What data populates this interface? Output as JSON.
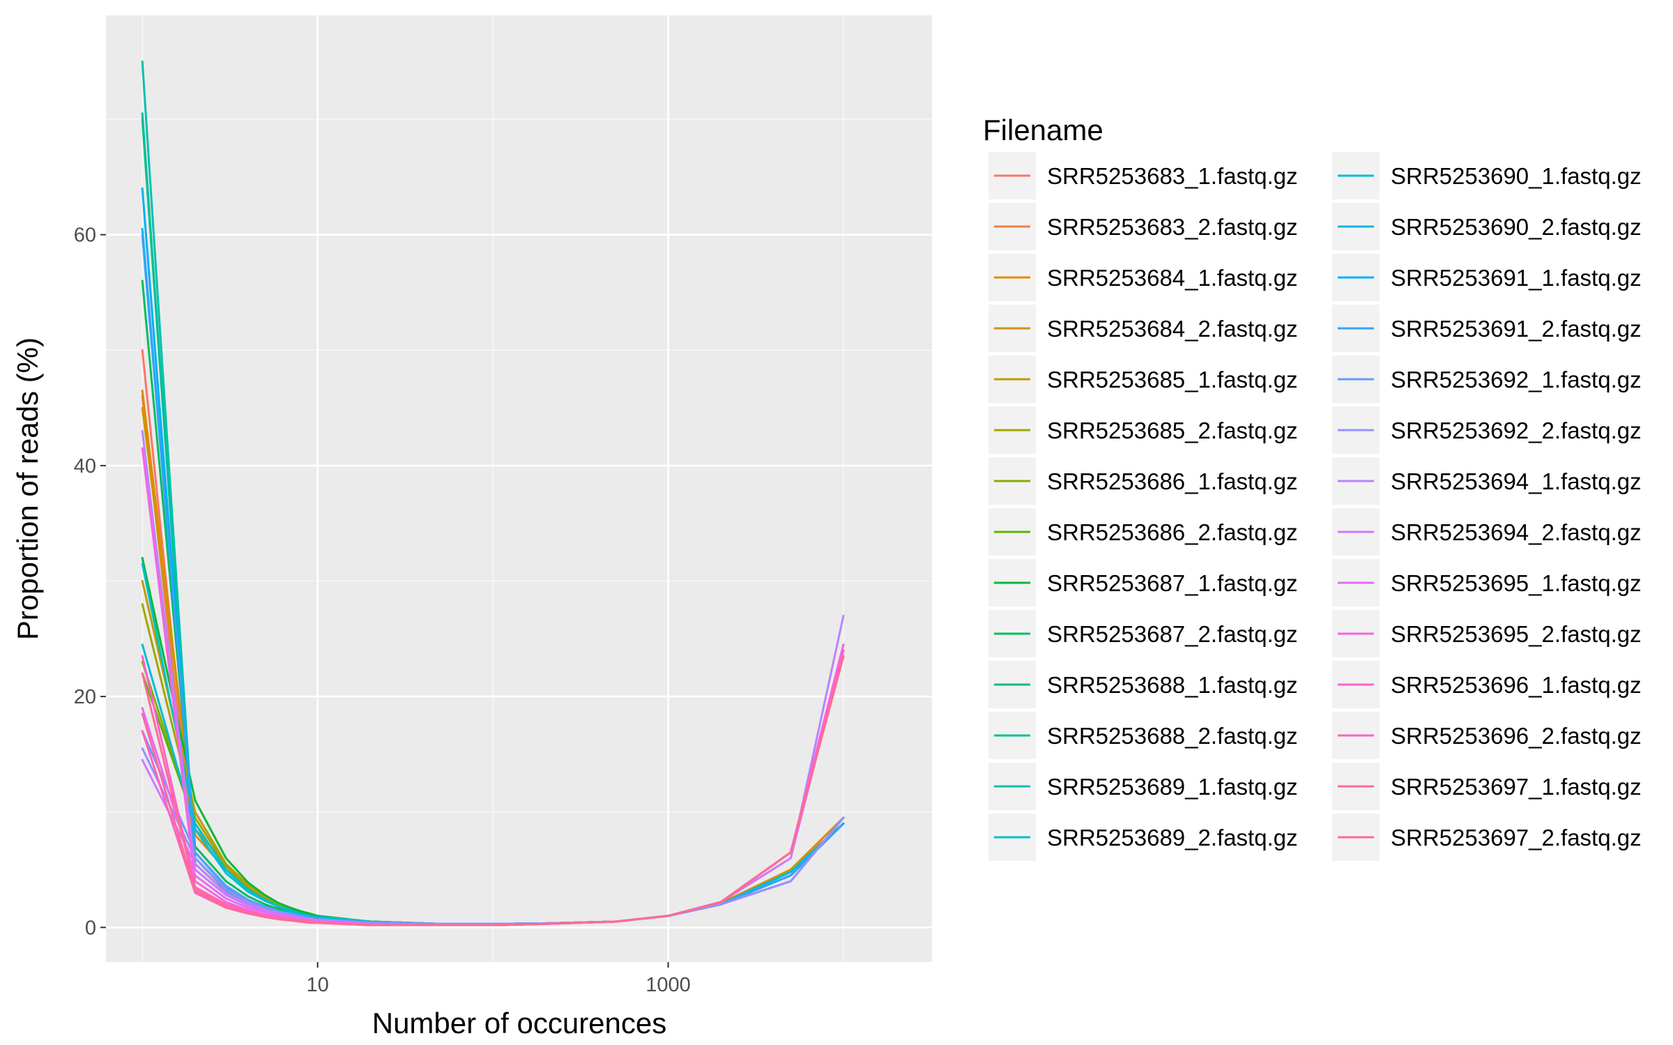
{
  "chart_data": {
    "type": "line",
    "title": "",
    "xlabel": "Number of occurences",
    "ylabel": "Proportion of reads (%)",
    "x_scale": "log10",
    "xlim": [
      0.62,
      32000
    ],
    "ylim": [
      -3,
      79
    ],
    "x_ticks": [
      {
        "value": 10,
        "label": "10"
      },
      {
        "value": 1000,
        "label": "1000"
      }
    ],
    "y_ticks": [
      {
        "value": 0,
        "label": "0"
      },
      {
        "value": 20,
        "label": "20"
      },
      {
        "value": 40,
        "label": "40"
      },
      {
        "value": 60,
        "label": "60"
      }
    ],
    "background": "#ebebeb",
    "grid": true,
    "legend": {
      "title": "Filename",
      "position": "right",
      "columns": 2
    },
    "x": [
      1,
      2,
      3,
      4,
      5,
      6,
      7,
      8,
      9,
      10,
      20,
      50,
      100,
      200,
      500,
      1000,
      2000,
      5000,
      10000
    ],
    "series": [
      {
        "name": "SRR5253683_1.fastq.gz",
        "color": "#F8766D",
        "values": [
          50,
          5.5,
          3.0,
          2.0,
          1.5,
          1.2,
          1.0,
          0.9,
          0.8,
          0.7,
          0.4,
          0.3,
          0.3,
          0.35,
          0.5,
          1.0,
          2.0,
          5.0,
          9.0
        ]
      },
      {
        "name": "SRR5253683_2.fastq.gz",
        "color": "#EE8043",
        "values": [
          46,
          5.0,
          2.8,
          1.9,
          1.5,
          1.2,
          1.0,
          0.9,
          0.8,
          0.7,
          0.4,
          0.3,
          0.3,
          0.35,
          0.5,
          1.0,
          2.0,
          5.0,
          9.5
        ]
      },
      {
        "name": "SRR5253684_1.fastq.gz",
        "color": "#E08B00",
        "values": [
          46.5,
          8.0,
          5.0,
          3.5,
          2.6,
          2.0,
          1.6,
          1.3,
          1.1,
          0.9,
          0.5,
          0.3,
          0.3,
          0.35,
          0.5,
          1.0,
          2.1,
          5.0,
          9.5
        ]
      },
      {
        "name": "SRR5253684_2.fastq.gz",
        "color": "#CF9400",
        "values": [
          45,
          8.5,
          5.5,
          3.7,
          2.7,
          2.1,
          1.7,
          1.4,
          1.2,
          1.0,
          0.5,
          0.3,
          0.3,
          0.35,
          0.5,
          1.0,
          2.1,
          5.0,
          9.5
        ]
      },
      {
        "name": "SRR5253685_1.fastq.gz",
        "color": "#BB9D00",
        "values": [
          30,
          10.0,
          5.5,
          3.6,
          2.6,
          2.0,
          1.6,
          1.3,
          1.1,
          0.9,
          0.5,
          0.3,
          0.3,
          0.35,
          0.5,
          1.0,
          2.0,
          4.8,
          9.0
        ]
      },
      {
        "name": "SRR5253685_2.fastq.gz",
        "color": "#A3A500",
        "values": [
          28,
          9.5,
          5.3,
          3.5,
          2.5,
          1.9,
          1.5,
          1.3,
          1.1,
          0.9,
          0.5,
          0.3,
          0.3,
          0.35,
          0.5,
          1.0,
          2.0,
          4.8,
          9.0
        ]
      },
      {
        "name": "SRR5253686_1.fastq.gz",
        "color": "#85AD00",
        "values": [
          23,
          9.0,
          5.0,
          3.3,
          2.4,
          1.8,
          1.5,
          1.2,
          1.0,
          0.9,
          0.5,
          0.3,
          0.3,
          0.35,
          0.5,
          1.0,
          2.0,
          4.8,
          9.0
        ]
      },
      {
        "name": "SRR5253686_2.fastq.gz",
        "color": "#5BB300",
        "values": [
          22,
          9.0,
          5.0,
          3.3,
          2.4,
          1.8,
          1.5,
          1.2,
          1.0,
          0.9,
          0.5,
          0.3,
          0.3,
          0.35,
          0.5,
          1.0,
          2.0,
          4.8,
          9.0
        ]
      },
      {
        "name": "SRR5253687_1.fastq.gz",
        "color": "#00BA38",
        "values": [
          32,
          11.0,
          6.0,
          3.9,
          2.8,
          2.1,
          1.7,
          1.4,
          1.2,
          1.0,
          0.5,
          0.3,
          0.3,
          0.35,
          0.5,
          1.0,
          2.0,
          4.8,
          9.0
        ]
      },
      {
        "name": "SRR5253687_2.fastq.gz",
        "color": "#00BD5C",
        "values": [
          56,
          7.0,
          4.0,
          2.7,
          2.0,
          1.6,
          1.3,
          1.1,
          0.9,
          0.8,
          0.4,
          0.3,
          0.3,
          0.35,
          0.5,
          1.0,
          2.0,
          4.8,
          9.0
        ]
      },
      {
        "name": "SRR5253688_1.fastq.gz",
        "color": "#00C07B",
        "values": [
          70,
          6.0,
          3.2,
          2.2,
          1.7,
          1.3,
          1.1,
          0.9,
          0.8,
          0.7,
          0.3,
          0.2,
          0.2,
          0.3,
          0.5,
          1.0,
          2.0,
          4.8,
          9.0
        ]
      },
      {
        "name": "SRR5253688_2.fastq.gz",
        "color": "#00C097",
        "values": [
          70.5,
          6.0,
          3.3,
          2.2,
          1.7,
          1.3,
          1.1,
          0.9,
          0.8,
          0.7,
          0.3,
          0.2,
          0.2,
          0.3,
          0.5,
          1.0,
          2.0,
          4.8,
          9.0
        ]
      },
      {
        "name": "SRR5253689_1.fastq.gz",
        "color": "#00C1AF",
        "values": [
          75,
          5.5,
          3.0,
          2.1,
          1.6,
          1.3,
          1.1,
          0.9,
          0.8,
          0.7,
          0.3,
          0.2,
          0.2,
          0.3,
          0.5,
          1.0,
          2.0,
          4.8,
          9.0
        ]
      },
      {
        "name": "SRR5253689_2.fastq.gz",
        "color": "#00BFC4",
        "values": [
          31.5,
          9.0,
          5.0,
          3.3,
          2.4,
          1.8,
          1.5,
          1.2,
          1.0,
          0.9,
          0.5,
          0.3,
          0.3,
          0.35,
          0.5,
          1.0,
          2.0,
          4.8,
          9.0
        ]
      },
      {
        "name": "SRR5253690_1.fastq.gz",
        "color": "#00BCD8",
        "values": [
          24.5,
          8.5,
          4.7,
          3.1,
          2.3,
          1.8,
          1.4,
          1.2,
          1.0,
          0.9,
          0.5,
          0.3,
          0.3,
          0.35,
          0.5,
          1.0,
          2.0,
          4.8,
          9.0
        ]
      },
      {
        "name": "SRR5253690_2.fastq.gz",
        "color": "#00B7E9",
        "values": [
          60.5,
          6.5,
          3.5,
          2.4,
          1.8,
          1.4,
          1.2,
          1.0,
          0.8,
          0.7,
          0.4,
          0.3,
          0.3,
          0.35,
          0.5,
          1.0,
          2.0,
          4.5,
          9.0
        ]
      },
      {
        "name": "SRR5253691_1.fastq.gz",
        "color": "#00B0F6",
        "values": [
          64,
          6.0,
          3.3,
          2.3,
          1.7,
          1.4,
          1.1,
          0.9,
          0.8,
          0.7,
          0.4,
          0.3,
          0.3,
          0.35,
          0.5,
          1.0,
          2.0,
          4.5,
          9.0
        ]
      },
      {
        "name": "SRR5253691_2.fastq.gz",
        "color": "#35A2FF",
        "values": [
          60,
          6.5,
          3.6,
          2.4,
          1.8,
          1.4,
          1.2,
          1.0,
          0.8,
          0.7,
          0.4,
          0.3,
          0.3,
          0.35,
          0.5,
          1.0,
          2.0,
          4.5,
          9.0
        ]
      },
      {
        "name": "SRR5253692_1.fastq.gz",
        "color": "#619CFF",
        "values": [
          17,
          6.5,
          3.6,
          2.4,
          1.8,
          1.4,
          1.2,
          1.0,
          0.8,
          0.7,
          0.4,
          0.3,
          0.3,
          0.35,
          0.5,
          1.0,
          2.0,
          4.0,
          9.5
        ]
      },
      {
        "name": "SRR5253692_2.fastq.gz",
        "color": "#9590FF",
        "values": [
          15.5,
          6.0,
          3.3,
          2.2,
          1.6,
          1.3,
          1.1,
          0.9,
          0.8,
          0.7,
          0.4,
          0.3,
          0.3,
          0.35,
          0.5,
          1.0,
          2.0,
          4.0,
          9.5
        ]
      },
      {
        "name": "SRR5253694_1.fastq.gz",
        "color": "#B983FF",
        "values": [
          43,
          5.0,
          2.8,
          1.9,
          1.4,
          1.1,
          0.9,
          0.8,
          0.7,
          0.6,
          0.3,
          0.2,
          0.2,
          0.3,
          0.5,
          1.0,
          2.2,
          6.0,
          27.0
        ]
      },
      {
        "name": "SRR5253694_2.fastq.gz",
        "color": "#D376FF",
        "values": [
          14.5,
          5.5,
          3.0,
          2.0,
          1.5,
          1.2,
          1.0,
          0.8,
          0.7,
          0.6,
          0.3,
          0.2,
          0.2,
          0.3,
          0.5,
          1.0,
          2.2,
          6.0,
          24.0
        ]
      },
      {
        "name": "SRR5253695_1.fastq.gz",
        "color": "#E76BF3",
        "values": [
          19,
          4.5,
          2.5,
          1.7,
          1.3,
          1.0,
          0.8,
          0.7,
          0.6,
          0.5,
          0.3,
          0.2,
          0.2,
          0.3,
          0.5,
          1.0,
          2.2,
          6.5,
          24.5
        ]
      },
      {
        "name": "SRR5253695_2.fastq.gz",
        "color": "#F564E3",
        "values": [
          41.5,
          4.0,
          2.2,
          1.5,
          1.1,
          0.9,
          0.7,
          0.6,
          0.5,
          0.5,
          0.3,
          0.2,
          0.2,
          0.3,
          0.5,
          1.0,
          2.2,
          6.5,
          24.5
        ]
      },
      {
        "name": "SRR5253696_1.fastq.gz",
        "color": "#FD61D1",
        "values": [
          23.5,
          3.5,
          2.0,
          1.4,
          1.0,
          0.8,
          0.7,
          0.6,
          0.5,
          0.4,
          0.2,
          0.2,
          0.2,
          0.3,
          0.5,
          1.0,
          2.2,
          6.5,
          24.0
        ]
      },
      {
        "name": "SRR5253696_2.fastq.gz",
        "color": "#FF62BC",
        "values": [
          17,
          3.0,
          1.7,
          1.2,
          0.9,
          0.7,
          0.6,
          0.5,
          0.4,
          0.4,
          0.2,
          0.2,
          0.2,
          0.3,
          0.5,
          1.0,
          2.2,
          6.5,
          23.5
        ]
      },
      {
        "name": "SRR5253697_1.fastq.gz",
        "color": "#FF67A4",
        "values": [
          18.5,
          3.2,
          1.8,
          1.3,
          1.0,
          0.8,
          0.6,
          0.5,
          0.5,
          0.4,
          0.2,
          0.2,
          0.2,
          0.3,
          0.5,
          1.0,
          2.2,
          6.5,
          23.5
        ]
      },
      {
        "name": "SRR5253697_2.fastq.gz",
        "color": "#FF6C91",
        "values": [
          22,
          3.4,
          1.9,
          1.3,
          1.0,
          0.8,
          0.7,
          0.6,
          0.5,
          0.4,
          0.2,
          0.2,
          0.2,
          0.3,
          0.5,
          1.0,
          2.2,
          6.5,
          23.5
        ]
      }
    ]
  }
}
